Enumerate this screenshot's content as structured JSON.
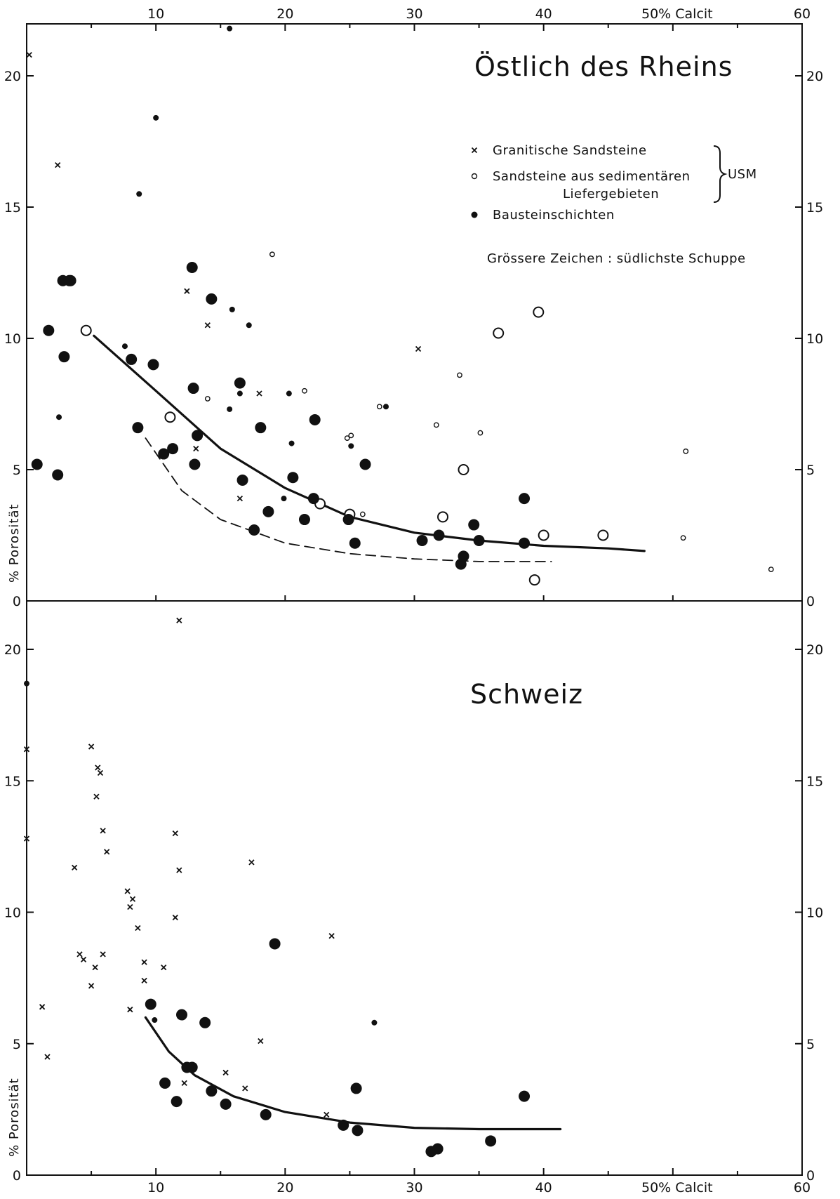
{
  "chart_data": [
    {
      "type": "scatter",
      "title": "Östlich des Rheins",
      "xlabel": "50% Calcit",
      "ylabel": "% Porosität",
      "x_ticks": [
        "10",
        "20",
        "30",
        "40",
        "50% Calcit",
        "60"
      ],
      "y_ticks": [
        "0",
        "5",
        "10",
        "15",
        "20"
      ],
      "xlim": [
        0,
        60
      ],
      "ylim": [
        0,
        22
      ],
      "grid": false,
      "legend_position": "top-right",
      "legend": {
        "entries": [
          {
            "symbol": "×",
            "label": "Granitische Sandsteine",
            "series": "granitische"
          },
          {
            "symbol": "○",
            "label": "Sandsteine aus sedimentären Liefergebieten",
            "series": "sedimentaer"
          },
          {
            "symbol": "●",
            "label": "Bausteinschichten",
            "series": "baustein"
          }
        ],
        "bracket_label": "USM",
        "note": "Grössere Zeichen : südlichste Schuppe"
      },
      "series": [
        {
          "name": "Granitische Sandsteine",
          "marker": "cross",
          "points": [
            {
              "x": 0.2,
              "y": 20.8,
              "size": "small"
            },
            {
              "x": 2.4,
              "y": 16.6,
              "size": "small"
            },
            {
              "x": 12.4,
              "y": 11.8,
              "size": "small"
            },
            {
              "x": 14.0,
              "y": 10.5,
              "size": "small"
            },
            {
              "x": 18.0,
              "y": 7.9,
              "size": "small"
            },
            {
              "x": 30.3,
              "y": 9.6,
              "size": "small"
            },
            {
              "x": 13.1,
              "y": 5.8,
              "size": "small"
            },
            {
              "x": 16.5,
              "y": 3.9,
              "size": "small"
            }
          ]
        },
        {
          "name": "Sandsteine aus sedimentären Liefergebieten",
          "marker": "open-circle",
          "points": [
            {
              "x": 4.6,
              "y": 10.3,
              "size": "large"
            },
            {
              "x": 11.1,
              "y": 7.0,
              "size": "large"
            },
            {
              "x": 22.7,
              "y": 3.7,
              "size": "large"
            },
            {
              "x": 25.0,
              "y": 3.3,
              "size": "large"
            },
            {
              "x": 32.2,
              "y": 3.2,
              "size": "large"
            },
            {
              "x": 33.8,
              "y": 5.0,
              "size": "large"
            },
            {
              "x": 36.5,
              "y": 10.2,
              "size": "large"
            },
            {
              "x": 39.6,
              "y": 11.0,
              "size": "large"
            },
            {
              "x": 40.0,
              "y": 2.5,
              "size": "large"
            },
            {
              "x": 44.6,
              "y": 2.5,
              "size": "large"
            },
            {
              "x": 39.3,
              "y": 0.8,
              "size": "large"
            },
            {
              "x": 19.0,
              "y": 13.2,
              "size": "small"
            },
            {
              "x": 14.0,
              "y": 7.7,
              "size": "small"
            },
            {
              "x": 21.5,
              "y": 8.0,
              "size": "small"
            },
            {
              "x": 24.8,
              "y": 6.2,
              "size": "small"
            },
            {
              "x": 25.1,
              "y": 6.3,
              "size": "small"
            },
            {
              "x": 27.3,
              "y": 7.4,
              "size": "small"
            },
            {
              "x": 31.7,
              "y": 6.7,
              "size": "small"
            },
            {
              "x": 33.5,
              "y": 8.6,
              "size": "small"
            },
            {
              "x": 35.1,
              "y": 6.4,
              "size": "small"
            },
            {
              "x": 26.0,
              "y": 3.3,
              "size": "small"
            },
            {
              "x": 51.0,
              "y": 5.7,
              "size": "small"
            },
            {
              "x": 50.8,
              "y": 2.4,
              "size": "small"
            },
            {
              "x": 57.6,
              "y": 1.2,
              "size": "small"
            }
          ]
        },
        {
          "name": "Bausteinschichten",
          "marker": "filled-circle",
          "points": [
            {
              "x": 0.8,
              "y": 5.2,
              "size": "large"
            },
            {
              "x": 1.7,
              "y": 10.3,
              "size": "large"
            },
            {
              "x": 2.4,
              "y": 4.8,
              "size": "large"
            },
            {
              "x": 2.8,
              "y": 12.2,
              "size": "large"
            },
            {
              "x": 3.3,
              "y": 12.2,
              "size": "large"
            },
            {
              "x": 3.4,
              "y": 12.2,
              "size": "large"
            },
            {
              "x": 2.9,
              "y": 9.3,
              "size": "large"
            },
            {
              "x": 8.1,
              "y": 9.2,
              "size": "large"
            },
            {
              "x": 8.6,
              "y": 6.6,
              "size": "large"
            },
            {
              "x": 9.8,
              "y": 9.0,
              "size": "large"
            },
            {
              "x": 10.6,
              "y": 5.6,
              "size": "large"
            },
            {
              "x": 11.3,
              "y": 5.8,
              "size": "large"
            },
            {
              "x": 12.8,
              "y": 12.7,
              "size": "large"
            },
            {
              "x": 12.9,
              "y": 8.1,
              "size": "large"
            },
            {
              "x": 13.0,
              "y": 5.2,
              "size": "large"
            },
            {
              "x": 13.2,
              "y": 6.3,
              "size": "large"
            },
            {
              "x": 14.3,
              "y": 11.5,
              "size": "large"
            },
            {
              "x": 16.5,
              "y": 8.3,
              "size": "large"
            },
            {
              "x": 16.7,
              "y": 4.6,
              "size": "large"
            },
            {
              "x": 17.6,
              "y": 2.7,
              "size": "large"
            },
            {
              "x": 18.1,
              "y": 6.6,
              "size": "large"
            },
            {
              "x": 18.7,
              "y": 3.4,
              "size": "large"
            },
            {
              "x": 20.6,
              "y": 4.7,
              "size": "large"
            },
            {
              "x": 21.5,
              "y": 3.1,
              "size": "large"
            },
            {
              "x": 22.3,
              "y": 6.9,
              "size": "large"
            },
            {
              "x": 22.2,
              "y": 3.9,
              "size": "large"
            },
            {
              "x": 24.9,
              "y": 3.1,
              "size": "large"
            },
            {
              "x": 25.4,
              "y": 2.2,
              "size": "large"
            },
            {
              "x": 26.2,
              "y": 5.2,
              "size": "large"
            },
            {
              "x": 30.6,
              "y": 2.3,
              "size": "large"
            },
            {
              "x": 31.9,
              "y": 2.5,
              "size": "large"
            },
            {
              "x": 33.6,
              "y": 1.4,
              "size": "large"
            },
            {
              "x": 33.8,
              "y": 1.7,
              "size": "large"
            },
            {
              "x": 34.6,
              "y": 2.9,
              "size": "large"
            },
            {
              "x": 35.0,
              "y": 2.3,
              "size": "large"
            },
            {
              "x": 38.5,
              "y": 3.9,
              "size": "large"
            },
            {
              "x": 38.5,
              "y": 2.2,
              "size": "large"
            },
            {
              "x": 15.7,
              "y": 21.8,
              "size": "small"
            },
            {
              "x": 10.0,
              "y": 18.4,
              "size": "small"
            },
            {
              "x": 8.7,
              "y": 15.5,
              "size": "small"
            },
            {
              "x": 15.9,
              "y": 11.1,
              "size": "small"
            },
            {
              "x": 17.2,
              "y": 10.5,
              "size": "small"
            },
            {
              "x": 7.6,
              "y": 9.7,
              "size": "small"
            },
            {
              "x": 2.5,
              "y": 7.0,
              "size": "small"
            },
            {
              "x": 16.5,
              "y": 7.9,
              "size": "small"
            },
            {
              "x": 15.7,
              "y": 7.3,
              "size": "small"
            },
            {
              "x": 20.3,
              "y": 7.9,
              "size": "small"
            },
            {
              "x": 20.5,
              "y": 6.0,
              "size": "small"
            },
            {
              "x": 25.1,
              "y": 5.9,
              "size": "small"
            },
            {
              "x": 27.8,
              "y": 7.4,
              "size": "small"
            },
            {
              "x": 19.9,
              "y": 3.9,
              "size": "small"
            }
          ]
        }
      ],
      "trend_lines": [
        {
          "style": "solid",
          "x": [
            5.2,
            10,
            15,
            20,
            25,
            30,
            35,
            40,
            45,
            47.8
          ],
          "y": [
            10.1,
            8.0,
            5.8,
            4.3,
            3.2,
            2.6,
            2.3,
            2.1,
            2.0,
            1.9
          ]
        },
        {
          "style": "dashed",
          "x": [
            9.2,
            12,
            15,
            20,
            25,
            30,
            35,
            40.6
          ],
          "y": [
            6.2,
            4.2,
            3.1,
            2.2,
            1.8,
            1.6,
            1.5,
            1.5
          ]
        }
      ]
    },
    {
      "type": "scatter",
      "title": "Schweiz",
      "xlabel": "50% Calcit",
      "ylabel": "% Porosität",
      "x_ticks": [
        "10",
        "20",
        "30",
        "40",
        "50% Calcit",
        "60"
      ],
      "y_ticks": [
        "0",
        "5",
        "10",
        "15",
        "20"
      ],
      "xlim": [
        0,
        60
      ],
      "ylim": [
        0,
        22
      ],
      "grid": false,
      "series": [
        {
          "name": "Granitische Sandsteine",
          "marker": "cross",
          "points": [
            {
              "x": 11.8,
              "y": 21.1
            },
            {
              "x": 0.0,
              "y": 16.2
            },
            {
              "x": 5.0,
              "y": 16.3
            },
            {
              "x": 5.5,
              "y": 15.5
            },
            {
              "x": 5.7,
              "y": 15.3
            },
            {
              "x": 5.4,
              "y": 14.4
            },
            {
              "x": 5.9,
              "y": 13.1
            },
            {
              "x": 0.0,
              "y": 12.8
            },
            {
              "x": 6.2,
              "y": 12.3
            },
            {
              "x": 11.5,
              "y": 13.0
            },
            {
              "x": 3.7,
              "y": 11.7
            },
            {
              "x": 11.8,
              "y": 11.6
            },
            {
              "x": 17.4,
              "y": 11.9
            },
            {
              "x": 7.8,
              "y": 10.8
            },
            {
              "x": 8.2,
              "y": 10.5
            },
            {
              "x": 8.0,
              "y": 10.2
            },
            {
              "x": 11.5,
              "y": 9.8
            },
            {
              "x": 8.6,
              "y": 9.4
            },
            {
              "x": 23.6,
              "y": 9.1
            },
            {
              "x": 4.1,
              "y": 8.4
            },
            {
              "x": 4.4,
              "y": 8.2
            },
            {
              "x": 5.9,
              "y": 8.4
            },
            {
              "x": 9.1,
              "y": 8.1
            },
            {
              "x": 5.3,
              "y": 7.9
            },
            {
              "x": 10.6,
              "y": 7.9
            },
            {
              "x": 9.1,
              "y": 7.4
            },
            {
              "x": 5.0,
              "y": 7.2
            },
            {
              "x": 1.2,
              "y": 6.4
            },
            {
              "x": 8.0,
              "y": 6.3
            },
            {
              "x": 18.1,
              "y": 5.1
            },
            {
              "x": 1.6,
              "y": 4.5
            },
            {
              "x": 15.4,
              "y": 3.9
            },
            {
              "x": 12.2,
              "y": 3.5
            },
            {
              "x": 16.9,
              "y": 3.3
            },
            {
              "x": 23.2,
              "y": 2.3
            }
          ]
        },
        {
          "name": "Bausteinschichten",
          "marker": "filled-circle",
          "points": [
            {
              "x": 0.0,
              "y": 18.7,
              "size": "small"
            },
            {
              "x": 9.9,
              "y": 5.9,
              "size": "small"
            },
            {
              "x": 26.9,
              "y": 5.8,
              "size": "small"
            },
            {
              "x": 9.6,
              "y": 6.5,
              "size": "large"
            },
            {
              "x": 12.0,
              "y": 6.1,
              "size": "large"
            },
            {
              "x": 13.8,
              "y": 5.8,
              "size": "large"
            },
            {
              "x": 19.2,
              "y": 8.8,
              "size": "large"
            },
            {
              "x": 12.4,
              "y": 4.1,
              "size": "large"
            },
            {
              "x": 12.8,
              "y": 4.1,
              "size": "large"
            },
            {
              "x": 10.7,
              "y": 3.5,
              "size": "large"
            },
            {
              "x": 14.3,
              "y": 3.2,
              "size": "large"
            },
            {
              "x": 11.6,
              "y": 2.8,
              "size": "large"
            },
            {
              "x": 15.4,
              "y": 2.7,
              "size": "large"
            },
            {
              "x": 18.5,
              "y": 2.3,
              "size": "large"
            },
            {
              "x": 24.5,
              "y": 1.9,
              "size": "large"
            },
            {
              "x": 25.5,
              "y": 3.3,
              "size": "large"
            },
            {
              "x": 25.6,
              "y": 1.7,
              "size": "large"
            },
            {
              "x": 31.3,
              "y": 0.9,
              "size": "large"
            },
            {
              "x": 31.8,
              "y": 1.0,
              "size": "large"
            },
            {
              "x": 35.9,
              "y": 1.3,
              "size": "large"
            },
            {
              "x": 38.5,
              "y": 3.0,
              "size": "large"
            }
          ]
        }
      ],
      "trend_lines": [
        {
          "style": "solid",
          "x": [
            9.2,
            11,
            13,
            16,
            20,
            25,
            30,
            35,
            41.3
          ],
          "y": [
            6.0,
            4.7,
            3.8,
            3.0,
            2.4,
            2.0,
            1.8,
            1.75,
            1.75
          ]
        }
      ]
    }
  ]
}
